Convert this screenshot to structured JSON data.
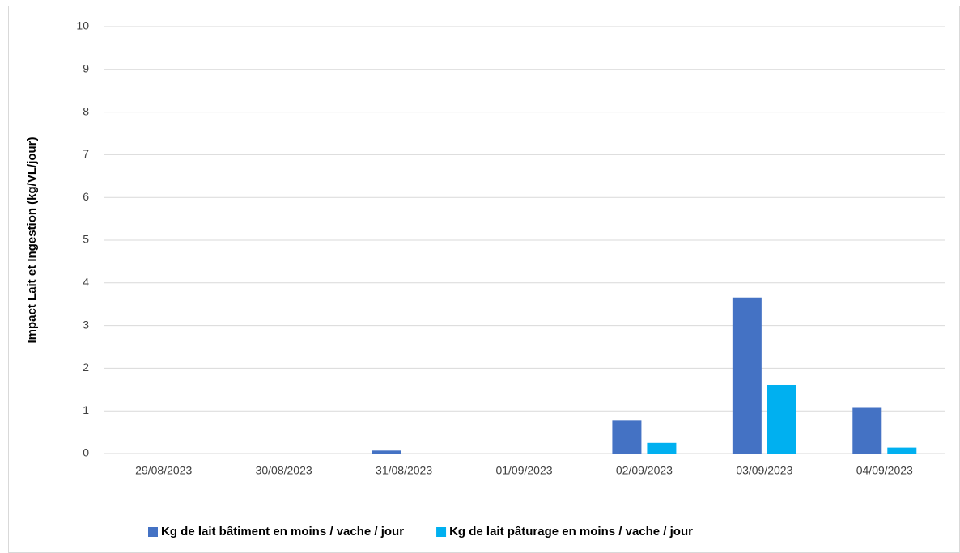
{
  "chart_data": {
    "type": "bar",
    "y_label": "Impact Lait et Ingestion (kg/VL/jour)",
    "categories": [
      "29/08/2023",
      "30/08/2023",
      "31/08/2023",
      "01/09/2023",
      "02/09/2023",
      "03/09/2023",
      "04/09/2023"
    ],
    "series": [
      {
        "name": "Kg de lait bâtiment en moins / vache / jour",
        "color": "#4472c4",
        "values": [
          0,
          0,
          0.07,
          0,
          0.77,
          3.66,
          1.07
        ]
      },
      {
        "name": "Kg de lait pâturage en moins / vache / jour",
        "color": "#00b0f0",
        "values": [
          0,
          0,
          0,
          0,
          0.25,
          1.61,
          0.14
        ]
      }
    ],
    "ylim": [
      0,
      10
    ],
    "yticks": [
      0,
      1,
      2,
      3,
      4,
      5,
      6,
      7,
      8,
      9,
      10
    ],
    "grid": true,
    "legend": "bottom"
  }
}
